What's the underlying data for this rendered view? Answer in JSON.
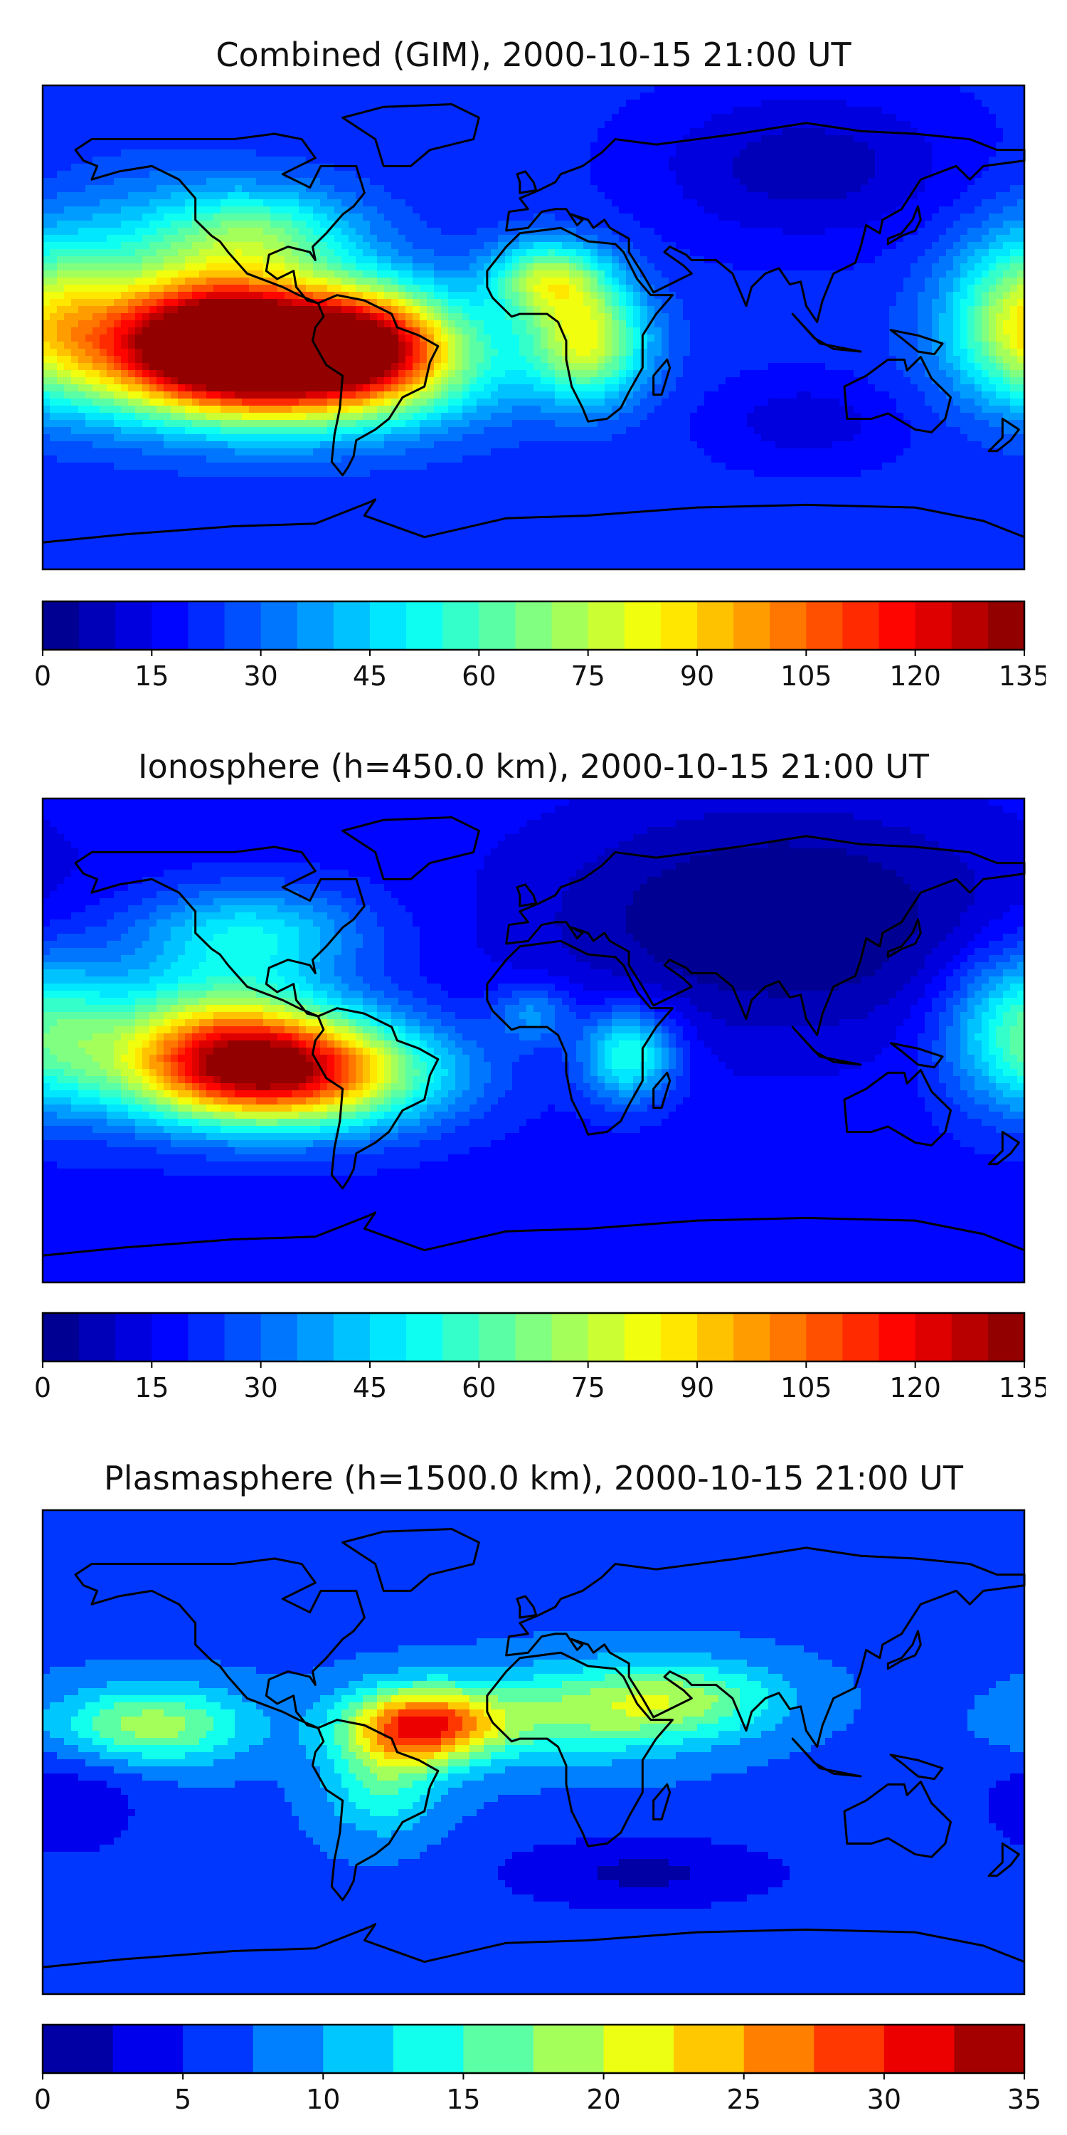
{
  "chart_data": [
    {
      "type": "heatmap",
      "title": "Combined (GIM), 2000-10-15 21:00 UT",
      "map": "world coastlines, equirectangular projection",
      "colormap": "jet",
      "colorbar": {
        "min": 0,
        "max": 135,
        "step": 5,
        "ticks": [
          0,
          15,
          30,
          45,
          60,
          75,
          90,
          105,
          120,
          135
        ],
        "tick_labels": [
          "0",
          "15",
          "30",
          "45",
          "60",
          "75",
          "90",
          "105",
          "120",
          "135"
        ],
        "position": "bottom"
      },
      "features": [
        {
          "lon": -95,
          "lat": -12,
          "value": 130,
          "sx": 45,
          "sy": 16
        },
        {
          "lon": -115,
          "lat": 2,
          "value": 60,
          "sx": 30,
          "sy": 16
        },
        {
          "lon": -58,
          "lat": -2,
          "value": 35,
          "sx": 20,
          "sy": 15
        },
        {
          "lon": -100,
          "lat": 35,
          "value": 35,
          "sx": 25,
          "sy": 12
        },
        {
          "lon": 20,
          "lat": -5,
          "value": 55,
          "sx": 15,
          "sy": 15
        },
        {
          "lon": 5,
          "lat": 18,
          "value": 48,
          "sx": 15,
          "sy": 10
        },
        {
          "lon": 180,
          "lat": 5,
          "value": 45,
          "sx": 20,
          "sy": 20
        },
        {
          "lon": -140,
          "lat": 30,
          "value": 15,
          "sx": 30,
          "sy": 20
        },
        {
          "lon": 100,
          "lat": 60,
          "value": -15,
          "sx": 40,
          "sy": 20
        },
        {
          "lon": 100,
          "lat": -35,
          "value": -10,
          "sx": 25,
          "sy": 12
        }
      ],
      "base_value": 22
    },
    {
      "type": "heatmap",
      "title": "Ionosphere  (h=450.0 km), 2000-10-15 21:00 UT",
      "map": "world coastlines, equirectangular projection",
      "colormap": "jet",
      "colorbar": {
        "min": 0,
        "max": 135,
        "step": 5,
        "ticks": [
          0,
          15,
          30,
          45,
          60,
          75,
          90,
          105,
          120,
          135
        ],
        "tick_labels": [
          "0",
          "15",
          "30",
          "45",
          "60",
          "75",
          "90",
          "105",
          "120",
          "135"
        ],
        "position": "bottom"
      },
      "features": [
        {
          "lon": -95,
          "lat": -12,
          "value": 105,
          "sx": 38,
          "sy": 14
        },
        {
          "lon": -115,
          "lat": 5,
          "value": 45,
          "sx": 30,
          "sy": 16
        },
        {
          "lon": -105,
          "lat": 40,
          "value": 30,
          "sx": 30,
          "sy": 12
        },
        {
          "lon": 35,
          "lat": -5,
          "value": 40,
          "sx": 12,
          "sy": 12
        },
        {
          "lon": 0,
          "lat": 10,
          "value": 20,
          "sx": 10,
          "sy": 8
        },
        {
          "lon": 180,
          "lat": 5,
          "value": 40,
          "sx": 20,
          "sy": 20
        },
        {
          "lon": 90,
          "lat": 45,
          "value": -20,
          "sx": 60,
          "sy": 30
        }
      ],
      "base_value": 18
    },
    {
      "type": "heatmap",
      "title": "Plasmasphere (h=1500.0 km), 2000-10-15 21:00 UT",
      "map": "world coastlines, equirectangular projection",
      "colormap": "jet",
      "colorbar": {
        "min": 0,
        "max": 35,
        "step": 2.5,
        "ticks": [
          0,
          5,
          10,
          15,
          20,
          25,
          30,
          35
        ],
        "tick_labels": [
          "0",
          "5",
          "10",
          "15",
          "20",
          "25",
          "30",
          "35"
        ],
        "position": "bottom"
      },
      "features": [
        {
          "lon": -40,
          "lat": 10,
          "value": 22,
          "sx": 20,
          "sy": 10
        },
        {
          "lon": -140,
          "lat": 10,
          "value": 12,
          "sx": 25,
          "sy": 10
        },
        {
          "lon": 20,
          "lat": 15,
          "value": 10,
          "sx": 30,
          "sy": 12
        },
        {
          "lon": -55,
          "lat": -10,
          "value": 8,
          "sx": 15,
          "sy": 15
        },
        {
          "lon": 60,
          "lat": 20,
          "value": 8,
          "sx": 25,
          "sy": 10
        },
        {
          "lon": 40,
          "lat": -45,
          "value": -5,
          "sx": 40,
          "sy": 10
        },
        {
          "lon": -170,
          "lat": -20,
          "value": -4,
          "sx": 20,
          "sy": 15
        }
      ],
      "base_value": 7
    }
  ]
}
